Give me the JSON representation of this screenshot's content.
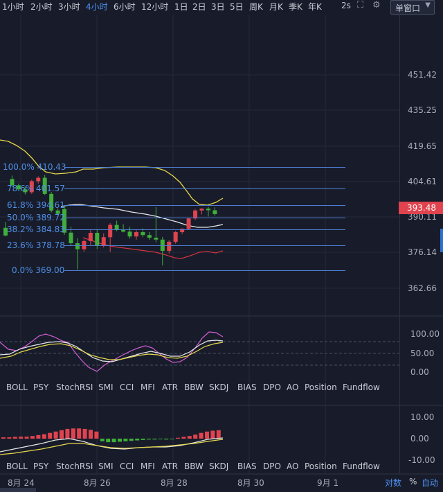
{
  "toolbar": {
    "timeframes": [
      "1小时",
      "2小时",
      "3小时",
      "4小时",
      "6小时",
      "12小时",
      "1日",
      "2日",
      "3日",
      "5日",
      "周K",
      "月K",
      "季K",
      "年K"
    ],
    "active_timeframe": "4小时",
    "interval_label": "2s",
    "window_select": "单窗口",
    "icons": [
      "expand-icon",
      "compare-icon",
      "settings-icon"
    ]
  },
  "price_axis": [
    "451.42",
    "435.25",
    "419.65",
    "404.61",
    "390.11",
    "376.14",
    "362.66"
  ],
  "current_price": "393.48",
  "fibonacci": [
    {
      "label": "100.0% 410.43",
      "value": 410.43
    },
    {
      "label": "78.6% 401.57",
      "value": 401.57
    },
    {
      "label": "61.8% 394.61",
      "value": 394.61
    },
    {
      "label": "50.0% 389.72",
      "value": 389.72
    },
    {
      "label": "38.2% 384.83",
      "value": 384.83
    },
    {
      "label": "23.6% 378.78",
      "value": 378.78
    },
    {
      "label": "0.0% 369.00",
      "value": 369.0
    }
  ],
  "indicator_tabs": [
    "BOLL",
    "PSY",
    "StochRSI",
    "SMI",
    "CCI",
    "MFI",
    "ATR",
    "BBW",
    "SKDJ",
    "BIAS",
    "DPO",
    "AO",
    "Position",
    "Fundflow"
  ],
  "skdj_axis": [
    "100.00",
    "50.00",
    "0.00"
  ],
  "macd_axis": [
    "10.00",
    "0.00",
    "-10.00"
  ],
  "dates": [
    "8月 24",
    "8月 26",
    "8月 28",
    "8月 30",
    "9月 1"
  ],
  "bottom": {
    "log_label": "对数",
    "pct_label": "%",
    "auto_label": "自动"
  },
  "colors": {
    "up": "#e0434e",
    "down": "#3fae3a",
    "fib": "#4f7fd6",
    "active": "#4d8ff0",
    "boll_upper": "#e6d84a",
    "boll_mid": "#e8e8ea",
    "boll_lower": "#d2343f"
  },
  "chart_data": {
    "type": "candlestick",
    "candles": [
      {
        "o": 387.8,
        "h": 390.2,
        "l": 384.2,
        "c": 384.6
      },
      {
        "o": 408.1,
        "h": 409.5,
        "l": 404.8,
        "c": 405.5
      },
      {
        "o": 405.5,
        "h": 406.2,
        "l": 403.0,
        "c": 403.8
      },
      {
        "o": 403.8,
        "h": 405.0,
        "l": 401.7,
        "c": 402.6
      },
      {
        "o": 402.6,
        "h": 407.8,
        "l": 401.9,
        "c": 407.2
      },
      {
        "o": 407.2,
        "h": 409.2,
        "l": 406.2,
        "c": 408.6
      },
      {
        "o": 408.6,
        "h": 409.8,
        "l": 401.5,
        "c": 401.9
      },
      {
        "o": 401.9,
        "h": 402.7,
        "l": 394.2,
        "c": 395.0
      },
      {
        "o": 395.0,
        "h": 395.9,
        "l": 393.2,
        "c": 393.6
      },
      {
        "o": 395.6,
        "h": 397.0,
        "l": 384.9,
        "c": 385.8
      },
      {
        "o": 385.8,
        "h": 388.3,
        "l": 380.2,
        "c": 381.4
      },
      {
        "o": 381.4,
        "h": 383.5,
        "l": 370.5,
        "c": 378.9
      },
      {
        "o": 378.9,
        "h": 383.0,
        "l": 377.9,
        "c": 382.3
      },
      {
        "o": 382.3,
        "h": 386.8,
        "l": 380.6,
        "c": 385.7
      },
      {
        "o": 385.7,
        "h": 387.3,
        "l": 379.0,
        "c": 380.4
      },
      {
        "o": 380.4,
        "h": 385.5,
        "l": 379.6,
        "c": 383.9
      },
      {
        "o": 383.9,
        "h": 389.7,
        "l": 377.8,
        "c": 389.0
      },
      {
        "o": 389.0,
        "h": 390.8,
        "l": 386.4,
        "c": 387.0
      },
      {
        "o": 387.0,
        "h": 389.3,
        "l": 385.9,
        "c": 386.2
      },
      {
        "o": 386.2,
        "h": 388.2,
        "l": 383.3,
        "c": 384.2
      },
      {
        "o": 384.2,
        "h": 386.8,
        "l": 382.9,
        "c": 386.0
      },
      {
        "o": 386.0,
        "h": 387.6,
        "l": 383.9,
        "c": 384.8
      },
      {
        "o": 384.8,
        "h": 386.0,
        "l": 382.8,
        "c": 383.7
      },
      {
        "o": 383.7,
        "h": 396.4,
        "l": 381.8,
        "c": 382.9
      },
      {
        "o": 382.9,
        "h": 384.0,
        "l": 372.2,
        "c": 378.2
      },
      {
        "o": 378.2,
        "h": 382.7,
        "l": 377.1,
        "c": 382.0
      },
      {
        "o": 382.0,
        "h": 386.5,
        "l": 381.2,
        "c": 386.0
      },
      {
        "o": 386.0,
        "h": 387.6,
        "l": 385.2,
        "c": 387.4
      },
      {
        "o": 387.4,
        "h": 392.0,
        "l": 387.0,
        "c": 391.7
      },
      {
        "o": 391.7,
        "h": 395.6,
        "l": 391.0,
        "c": 395.0
      },
      {
        "o": 395.0,
        "h": 395.9,
        "l": 393.4,
        "c": 395.8
      },
      {
        "o": 395.8,
        "h": 396.5,
        "l": 392.5,
        "c": 395.1
      },
      {
        "o": 395.1,
        "h": 396.3,
        "l": 392.8,
        "c": 393.5
      }
    ]
  }
}
